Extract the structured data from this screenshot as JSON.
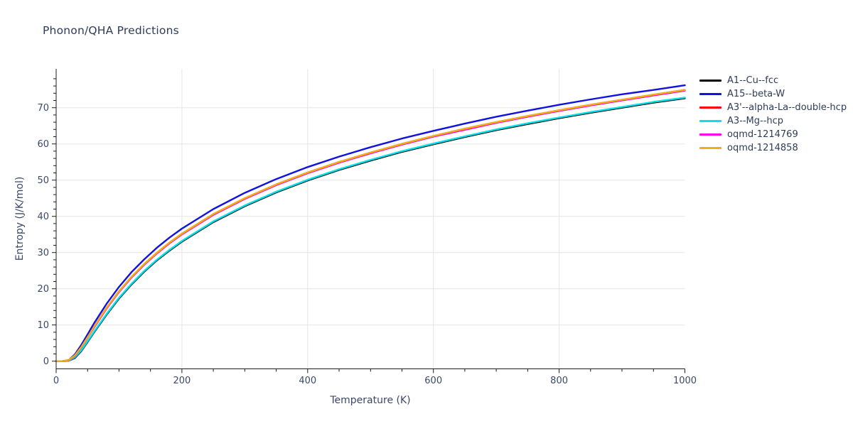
{
  "chart_data": {
    "type": "line",
    "title": "Phonon/QHA Predictions",
    "xlabel": "Temperature (K)",
    "ylabel": "Entropy (J/K/mol)",
    "xlim": [
      0,
      1000
    ],
    "ylim": [
      -2.1,
      80.7
    ],
    "x_ticks": [
      0,
      200,
      400,
      600,
      800,
      1000
    ],
    "y_ticks": [
      0,
      10,
      20,
      30,
      40,
      50,
      60,
      70
    ],
    "x_minor_step": 50,
    "y_minor_step": 2,
    "grid": true,
    "legend_position": "top-right-outside",
    "x": [
      0,
      10,
      20,
      30,
      40,
      50,
      60,
      80,
      100,
      120,
      140,
      160,
      180,
      200,
      250,
      300,
      350,
      400,
      450,
      500,
      550,
      600,
      650,
      700,
      750,
      800,
      850,
      900,
      950,
      1000
    ],
    "series": [
      {
        "name": "A1--Cu--fcc",
        "color": "#000000",
        "values": [
          0,
          0,
          0.1,
          0.9,
          2.8,
          5.3,
          7.9,
          12.8,
          17.3,
          21.2,
          24.7,
          27.8,
          30.5,
          33,
          38.4,
          42.8,
          46.6,
          49.9,
          52.8,
          55.4,
          57.8,
          59.9,
          61.9,
          63.8,
          65.5,
          67.1,
          68.6,
          70,
          71.4,
          72.6
        ]
      },
      {
        "name": "A15--beta-W",
        "color": "#1111e0",
        "values": [
          0,
          0,
          0.3,
          1.9,
          4.5,
          7.4,
          10.4,
          15.8,
          20.5,
          24.6,
          28.1,
          31.3,
          34.1,
          36.6,
          42,
          46.5,
          50.3,
          53.6,
          56.5,
          59.1,
          61.5,
          63.6,
          65.6,
          67.5,
          69.2,
          70.8,
          72.3,
          73.7,
          74.9,
          76.2
        ]
      },
      {
        "name": "A3'--alpha-La--double-hcp",
        "color": "#ff0000",
        "values": [
          0,
          0,
          0.3,
          1.6,
          3.9,
          6.6,
          9.4,
          14.7,
          19.3,
          23.3,
          26.8,
          29.9,
          32.7,
          35.2,
          40.6,
          45,
          48.8,
          52.1,
          55,
          57.6,
          60,
          62.2,
          64.2,
          66,
          67.7,
          69.3,
          70.8,
          72.2,
          73.6,
          74.9
        ]
      },
      {
        "name": "A3--Mg--hcp",
        "color": "#00e2ec",
        "values": [
          0,
          0,
          0.1,
          1.1,
          3,
          5.5,
          8.1,
          13,
          17.5,
          21.4,
          24.9,
          28,
          30.7,
          33.2,
          38.6,
          43,
          46.8,
          50.1,
          53,
          55.6,
          58,
          60.1,
          62.1,
          64,
          65.7,
          67.3,
          68.8,
          70.2,
          71.6,
          72.8
        ]
      },
      {
        "name": "oqmd-1214769",
        "color": "#ff00f0",
        "values": [
          0,
          0,
          0.2,
          1.5,
          3.8,
          6.5,
          9.2,
          14.5,
          19.1,
          23.1,
          26.6,
          29.7,
          32.5,
          35,
          40.4,
          44.8,
          48.6,
          51.9,
          54.8,
          57.4,
          59.8,
          62,
          63.9,
          65.8,
          67.5,
          69.1,
          70.6,
          72,
          73.4,
          74.7
        ]
      },
      {
        "name": "oqmd-1214858",
        "color": "#eeb00f",
        "values": [
          0,
          0,
          0.3,
          1.6,
          3.9,
          6.6,
          9.4,
          14.7,
          19.3,
          23.3,
          26.8,
          29.9,
          32.7,
          35.2,
          40.6,
          45,
          48.8,
          52.1,
          55,
          57.6,
          60,
          62.2,
          64.2,
          66,
          67.7,
          69.3,
          70.8,
          72.2,
          73.6,
          74.9
        ]
      }
    ]
  },
  "colors": {
    "background": "#ffffff",
    "title": "#2e3c59",
    "tick_label": "#3b4868",
    "axis_label": "#3b4868",
    "grid": "#e5e5e5",
    "axis_line": "#1c1c1c"
  }
}
